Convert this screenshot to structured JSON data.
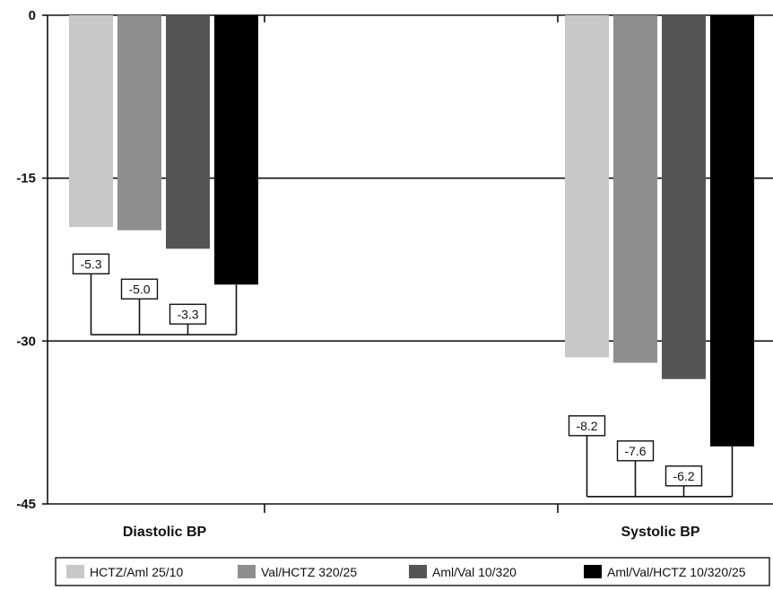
{
  "chart_data": {
    "type": "bar",
    "title": "",
    "xlabel": "",
    "ylabel": "",
    "ylim": [
      -45,
      0
    ],
    "yticks": [
      "0",
      "-15",
      "-30",
      "-45"
    ],
    "ytick_values": [
      0,
      -15,
      -30,
      -45
    ],
    "grid": true,
    "legend_placement": "bottom",
    "categories": [
      "Diastolic BP",
      "Systolic BP"
    ],
    "series": [
      {
        "name": "HCTZ/Aml 25/10",
        "values": [
          -19.5,
          -31.5
        ],
        "color": "#c8c8c8"
      },
      {
        "name": "Val/HCTZ 320/25",
        "values": [
          -19.8,
          -32.0
        ],
        "color": "#8e8e8e"
      },
      {
        "name": "Aml/Val 10/320",
        "values": [
          -21.5,
          -33.5
        ],
        "color": "#555555"
      },
      {
        "name": "Aml/Val/HCTZ 10/320/25",
        "values": [
          -24.8,
          -39.7
        ],
        "color": "#000000"
      }
    ],
    "annotations": [
      {
        "category": "Diastolic BP",
        "labels": [
          "-5.3",
          "-5.0",
          "-3.3"
        ]
      },
      {
        "category": "Systolic BP",
        "labels": [
          "-8.2",
          "-7.6",
          "-6.2"
        ]
      }
    ]
  }
}
